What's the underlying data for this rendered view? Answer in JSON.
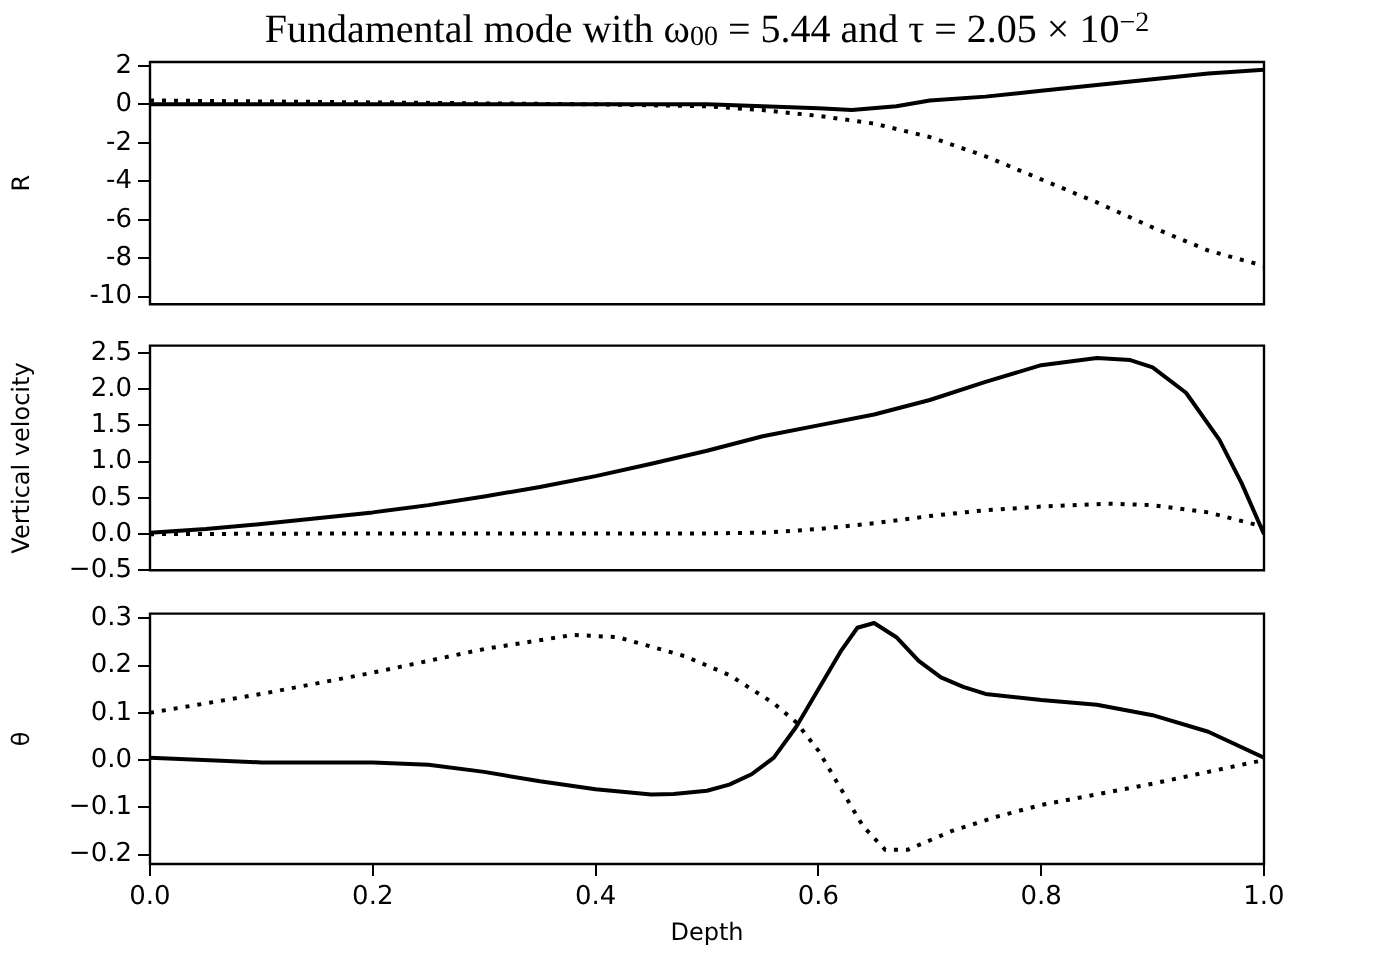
{
  "chart_data": [
    {
      "type": "line",
      "title": "Fundamental mode with ω$_{00}$ = 5.44 and τ = 2.05 × 10$^{−2}$",
      "ylabel": "R",
      "xlim": [
        0,
        1
      ],
      "xticks": [
        {
          "value": 0,
          "label": null
        },
        {
          "value": 0.2,
          "label": null
        },
        {
          "value": 0.4,
          "label": null
        },
        {
          "value": 0.6,
          "label": null
        },
        {
          "value": 0.8,
          "label": null
        },
        {
          "value": 1,
          "label": null
        }
      ],
      "ylim": [
        -10.4,
        2.2
      ],
      "yticks": [
        -10,
        -8,
        -6,
        -4,
        -2,
        0,
        2
      ],
      "tick_labels": "y",
      "grid": false,
      "legend": false,
      "marker": "none",
      "series": [
        {
          "color": "#000000",
          "line_style": "solid",
          "x": [
            0,
            0.1,
            0.2,
            0.3,
            0.4,
            0.5,
            0.55,
            0.6,
            0.63,
            0.67,
            0.7,
            0.75,
            0.8,
            0.85,
            0.9,
            0.95,
            1.0
          ],
          "values": [
            0,
            0,
            0,
            0,
            0,
            0,
            -0.1,
            -0.2,
            -0.3,
            -0.1,
            0.2,
            0.4,
            0.7,
            1,
            1.3,
            1.6,
            1.8
          ]
        },
        {
          "color": "#000000",
          "line_style": "dotted",
          "x": [
            0,
            0.2,
            0.4,
            0.5,
            0.55,
            0.6,
            0.65,
            0.7,
            0.75,
            0.8,
            0.85,
            0.9,
            0.95,
            1.0
          ],
          "values": [
            0.2,
            0.1,
            0,
            -0.1,
            -0.3,
            -0.6,
            -1.0,
            -1.7,
            -2.7,
            -3.9,
            -5.1,
            -6.4,
            -7.6,
            -8.4
          ]
        }
      ]
    },
    {
      "type": "line",
      "ylabel": "Vertical velocity",
      "xlim": [
        0,
        1
      ],
      "xticks": [
        {
          "value": 0,
          "label": null
        },
        {
          "value": 0.2,
          "label": null
        },
        {
          "value": 0.4,
          "label": null
        },
        {
          "value": 0.6,
          "label": null
        },
        {
          "value": 0.8,
          "label": null
        },
        {
          "value": 1,
          "label": null
        }
      ],
      "ylim": [
        -0.5,
        2.6
      ],
      "yticks": [
        {
          "value": -0.5,
          "label": "−0.5"
        },
        {
          "value": 0,
          "label": "0.0"
        },
        {
          "value": 0.5,
          "label": "0.5"
        },
        {
          "value": 1,
          "label": "1.0"
        },
        {
          "value": 1.5,
          "label": "1.5"
        },
        {
          "value": 2,
          "label": "2.0"
        },
        {
          "value": 2.5,
          "label": "2.5"
        }
      ],
      "tick_labels": "y",
      "grid": false,
      "legend": false,
      "marker": "none",
      "series": [
        {
          "color": "#000000",
          "line_style": "solid",
          "x": [
            0,
            0.05,
            0.1,
            0.15,
            0.2,
            0.25,
            0.3,
            0.35,
            0.4,
            0.45,
            0.5,
            0.55,
            0.6,
            0.65,
            0.7,
            0.75,
            0.8,
            0.85,
            0.88,
            0.9,
            0.93,
            0.96,
            0.98,
            1.0
          ],
          "values": [
            0.02,
            0.07,
            0.14,
            0.22,
            0.3,
            0.4,
            0.52,
            0.65,
            0.8,
            0.97,
            1.15,
            1.35,
            1.5,
            1.65,
            1.85,
            2.1,
            2.33,
            2.43,
            2.4,
            2.3,
            1.95,
            1.3,
            0.7,
            0.0
          ]
        },
        {
          "color": "#000000",
          "line_style": "dotted",
          "x": [
            0,
            0.2,
            0.4,
            0.5,
            0.55,
            0.6,
            0.65,
            0.7,
            0.75,
            0.8,
            0.86,
            0.9,
            0.95,
            1.0
          ],
          "values": [
            0,
            0.01,
            0.01,
            0.01,
            0.02,
            0.07,
            0.15,
            0.25,
            0.33,
            0.38,
            0.42,
            0.4,
            0.3,
            0.1
          ]
        }
      ]
    },
    {
      "type": "line",
      "xlabel": "Depth",
      "ylabel": "θ",
      "xlim": [
        0,
        1
      ],
      "xticks": [
        {
          "value": 0,
          "label": "0.0"
        },
        {
          "value": 0.2,
          "label": "0.2"
        },
        {
          "value": 0.4,
          "label": "0.4"
        },
        {
          "value": 0.6,
          "label": "0.6"
        },
        {
          "value": 0.8,
          "label": "0.8"
        },
        {
          "value": 1,
          "label": "1.0"
        }
      ],
      "ylim": [
        -0.22,
        0.31
      ],
      "yticks": [
        {
          "value": -0.2,
          "label": "−0.2"
        },
        {
          "value": -0.1,
          "label": "−0.1"
        },
        {
          "value": 0,
          "label": "0.0"
        },
        {
          "value": 0.1,
          "label": "0.1"
        },
        {
          "value": 0.2,
          "label": "0.2"
        },
        {
          "value": 0.3,
          "label": "0.3"
        }
      ],
      "grid": false,
      "legend": false,
      "marker": "none",
      "series": [
        {
          "color": "#000000",
          "line_style": "solid",
          "x": [
            0,
            0.1,
            0.2,
            0.25,
            0.3,
            0.35,
            0.4,
            0.45,
            0.47,
            0.5,
            0.52,
            0.54,
            0.56,
            0.58,
            0.6,
            0.62,
            0.635,
            0.65,
            0.67,
            0.69,
            0.71,
            0.73,
            0.75,
            0.8,
            0.85,
            0.9,
            0.95,
            1.0
          ],
          "values": [
            0.005,
            -0.005,
            -0.005,
            -0.01,
            -0.025,
            -0.045,
            -0.062,
            -0.073,
            -0.072,
            -0.065,
            -0.052,
            -0.03,
            0.005,
            0.07,
            0.15,
            0.23,
            0.28,
            0.29,
            0.26,
            0.21,
            0.175,
            0.155,
            0.14,
            0.127,
            0.117,
            0.095,
            0.06,
            0.005
          ]
        },
        {
          "color": "#000000",
          "line_style": "dotted",
          "x": [
            0,
            0.1,
            0.2,
            0.3,
            0.38,
            0.42,
            0.48,
            0.52,
            0.56,
            0.58,
            0.6,
            0.62,
            0.64,
            0.66,
            0.68,
            0.72,
            0.76,
            0.8,
            0.9,
            1.0
          ],
          "values": [
            0.1,
            0.14,
            0.185,
            0.235,
            0.265,
            0.26,
            0.22,
            0.18,
            0.12,
            0.08,
            0.02,
            -0.06,
            -0.14,
            -0.19,
            -0.19,
            -0.15,
            -0.12,
            -0.095,
            -0.05,
            0
          ]
        }
      ]
    }
  ]
}
